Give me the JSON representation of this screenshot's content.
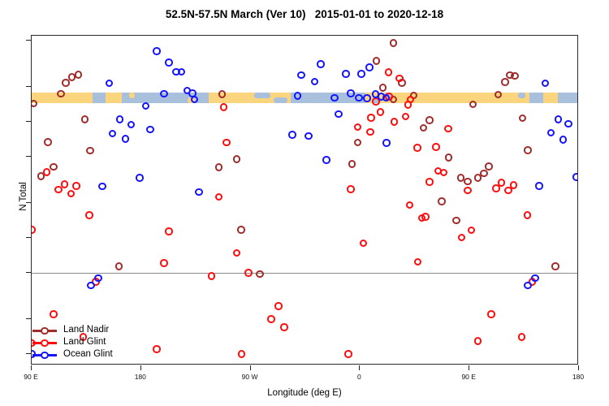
{
  "title": "52.5N-57.5N March (Ver 10)   2015-01-01 to 2020-12-18",
  "colors": {
    "land_nadir": "#A02C2C",
    "land_glint": "#FF0D0D",
    "ocean_glint": "#1414FF",
    "band_land": "#FBD57E",
    "band_ocean": "#A9C0DC",
    "axis": "#2b2b2b",
    "ref_line": "#8a8a8a"
  },
  "legend": [
    {
      "label": "Land Nadir",
      "series": "land_nadir"
    },
    {
      "label": "Land Glint",
      "series": "land_glint"
    },
    {
      "label": "Ocean Glint",
      "series": "ocean_glint"
    }
  ],
  "chart_data": {
    "type": "scatter",
    "title": "52.5N-57.5N March (Ver 10)   2015-01-01 to 2020-12-18",
    "xlabel": "Longitude (deg E)",
    "ylabel": "N Total",
    "x_axis_note": "longitude in deg E, axis wraps: 90E to 180 then westward to 180 again (90..540 continuous)",
    "xlim": [
      90,
      540
    ],
    "ylim": [
      8,
      5500
    ],
    "y_scale": "log10",
    "x_ticks": [
      {
        "value": 90,
        "label": "90 E"
      },
      {
        "value": 180,
        "label": "180"
      },
      {
        "value": 270,
        "label": "90 W"
      },
      {
        "value": 360,
        "label": "0"
      },
      {
        "value": 450,
        "label": "90 E"
      },
      {
        "value": 540,
        "label": "180"
      }
    ],
    "y_ticks": [
      5000,
      2000,
      1000,
      500,
      200,
      100,
      50,
      20,
      10
    ],
    "reference_line_y": 50,
    "land_ocean_band": {
      "n_range": [
        1440,
        1780
      ],
      "segments": [
        {
          "from": 90,
          "to": 140,
          "type": "land"
        },
        {
          "from": 140,
          "to": 151,
          "type": "ocean"
        },
        {
          "from": 151,
          "to": 164,
          "type": "land"
        },
        {
          "from": 164,
          "to": 235.5,
          "type": "ocean"
        },
        {
          "from": 235.5,
          "to": 271,
          "type": "land"
        },
        {
          "from": 271,
          "to": 303,
          "type": "land"
        },
        {
          "from": 303,
          "to": 364.5,
          "type": "ocean"
        },
        {
          "from": 364.5,
          "to": 499.5,
          "type": "land"
        },
        {
          "from": 499.5,
          "to": 510.5,
          "type": "ocean"
        },
        {
          "from": 510.5,
          "to": 522.5,
          "type": "land"
        },
        {
          "from": 522.5,
          "to": 540,
          "type": "ocean"
        }
      ],
      "flecks": [
        {
          "from": 170,
          "to": 175,
          "half": "top",
          "type": "land"
        },
        {
          "from": 218,
          "to": 224,
          "half": "bottom",
          "type": "land"
        },
        {
          "from": 273,
          "to": 286,
          "half": "top",
          "type": "ocean"
        },
        {
          "from": 289,
          "to": 300,
          "half": "bottom",
          "type": "ocean"
        },
        {
          "from": 306,
          "to": 312,
          "half": "top",
          "type": "ocean"
        },
        {
          "from": 370,
          "to": 377,
          "half": "bottom",
          "type": "ocean"
        },
        {
          "from": 380,
          "to": 385,
          "half": "top",
          "type": "ocean"
        },
        {
          "from": 490,
          "to": 496,
          "half": "top",
          "type": "ocean"
        }
      ]
    },
    "series": [
      {
        "name": "Land Nadir",
        "key": "land_nadir",
        "points": [
          [
            117.9,
            2170
          ],
          [
            123.0,
            2430
          ],
          [
            128.4,
            2550
          ],
          [
            113.9,
            1740
          ],
          [
            91.8,
            1430
          ],
          [
            133.7,
            1050
          ],
          [
            103.4,
            667
          ],
          [
            138.0,
            565
          ],
          [
            107.9,
            409
          ],
          [
            97.7,
            340
          ],
          [
            244.0,
            406
          ],
          [
            258.7,
            475
          ],
          [
            246.7,
            1730
          ],
          [
            161.9,
            57
          ],
          [
            277.5,
            49
          ],
          [
            262.3,
            118
          ],
          [
            387.3,
            4760
          ],
          [
            373.3,
            3340
          ],
          [
            378.6,
            1960
          ],
          [
            394.6,
            2160
          ],
          [
            387.3,
            1560
          ],
          [
            404.0,
            1690
          ],
          [
            353.4,
            434
          ],
          [
            357.9,
            664
          ],
          [
            412.0,
            883
          ],
          [
            417.2,
            1030
          ],
          [
            453.0,
            1410
          ],
          [
            473.6,
            1710
          ],
          [
            479.2,
            2200
          ],
          [
            483.4,
            2530
          ],
          [
            487.4,
            2480
          ],
          [
            493.6,
            1070
          ],
          [
            498.1,
            568
          ],
          [
            433.0,
            494
          ],
          [
            465.9,
            411
          ],
          [
            461.9,
            359
          ],
          [
            457.0,
            330
          ],
          [
            448.5,
            306
          ],
          [
            443.0,
            330
          ],
          [
            427.0,
            207
          ],
          [
            439.2,
            141
          ],
          [
            520.7,
            57
          ]
        ]
      },
      {
        "name": "Land Glint",
        "key": "land_glint",
        "points": [
          [
            102.5,
            368
          ],
          [
            111.9,
            260
          ],
          [
            117.2,
            290
          ],
          [
            126.8,
            280
          ],
          [
            122.3,
            240
          ],
          [
            248.0,
            1330
          ],
          [
            244.0,
            226
          ],
          [
            250.1,
            664
          ],
          [
            383.3,
            2660
          ],
          [
            392.4,
            2370
          ],
          [
            383.8,
            1640
          ],
          [
            373.1,
            1490
          ],
          [
            376.8,
            1210
          ],
          [
            369.0,
            1080
          ],
          [
            388.0,
            1000
          ],
          [
            397.3,
            1110
          ],
          [
            401.3,
            1560
          ],
          [
            399.3,
            1400
          ],
          [
            357.9,
            902
          ],
          [
            368.5,
            819
          ],
          [
            352.3,
            263
          ],
          [
            407.3,
            595
          ],
          [
            432.5,
            869
          ],
          [
            422.5,
            609
          ],
          [
            424.3,
            377
          ],
          [
            429.0,
            365
          ],
          [
            417.2,
            304
          ],
          [
            448.5,
            256
          ],
          [
            471.9,
            266
          ],
          [
            476.3,
            300
          ],
          [
            481.9,
            256
          ],
          [
            486.4,
            285
          ],
          [
            497.5,
            157
          ],
          [
            451.4,
            117
          ],
          [
            443.6,
            101
          ],
          [
            413.8,
            152
          ],
          [
            407.5,
            62
          ],
          [
            400.7,
            192
          ],
          [
            410.9,
            149
          ],
          [
            362.8,
            90
          ],
          [
            258.5,
            74
          ],
          [
            268.1,
            50
          ],
          [
            293.0,
            26
          ],
          [
            287.0,
            20
          ],
          [
            297.5,
            17
          ],
          [
            262.6,
            10
          ],
          [
            350.5,
            10
          ],
          [
            137.5,
            157
          ],
          [
            90.2,
            118
          ],
          [
            202.7,
            114
          ],
          [
            198.7,
            61
          ],
          [
            238.0,
            47
          ],
          [
            142.9,
            42
          ],
          [
            107.9,
            22
          ],
          [
            132.4,
            14
          ],
          [
            192.7,
            11
          ],
          [
            501.5,
            42
          ],
          [
            467.9,
            22
          ],
          [
            457.0,
            13
          ],
          [
            493.0,
            14
          ],
          [
            90.2,
            12.5
          ]
        ]
      },
      {
        "name": "Ocean Glint",
        "key": "ocean_glint",
        "points": [
          [
            192.7,
            4050
          ],
          [
            202.7,
            3230
          ],
          [
            209.0,
            2690
          ],
          [
            213.2,
            2690
          ],
          [
            153.6,
            2150
          ],
          [
            198.7,
            1740
          ],
          [
            217.9,
            1850
          ],
          [
            222.1,
            1750
          ],
          [
            223.9,
            1560
          ],
          [
            183.7,
            1370
          ],
          [
            162.5,
            1050
          ],
          [
            171.9,
            941
          ],
          [
            156.5,
            793
          ],
          [
            167.0,
            711
          ],
          [
            187.6,
            859
          ],
          [
            178.8,
            330
          ],
          [
            148.0,
            277
          ],
          [
            227.7,
            249
          ],
          [
            327.7,
            3130
          ],
          [
            348.5,
            2580
          ],
          [
            361.2,
            2580
          ],
          [
            367.9,
            2930
          ],
          [
            311.6,
            2530
          ],
          [
            322.8,
            2220
          ],
          [
            308.8,
            1670
          ],
          [
            339.1,
            1600
          ],
          [
            352.5,
            1750
          ],
          [
            359.2,
            1610
          ],
          [
            365.9,
            1590
          ],
          [
            372.6,
            1730
          ],
          [
            377.3,
            1640
          ],
          [
            381.3,
            1610
          ],
          [
            342.3,
            1160
          ],
          [
            304.3,
            771
          ],
          [
            317.7,
            752
          ],
          [
            332.2,
            470
          ],
          [
            381.9,
            656
          ],
          [
            512.3,
            2150
          ],
          [
            523.0,
            1050
          ],
          [
            531.4,
            957
          ],
          [
            517.0,
            806
          ],
          [
            527.0,
            704
          ],
          [
            507.4,
            280
          ],
          [
            538.1,
            335
          ],
          [
            144.7,
            45
          ],
          [
            138.7,
            39
          ],
          [
            498.1,
            39
          ],
          [
            504.1,
            45
          ],
          [
            90.3,
            10
          ]
        ]
      }
    ]
  }
}
